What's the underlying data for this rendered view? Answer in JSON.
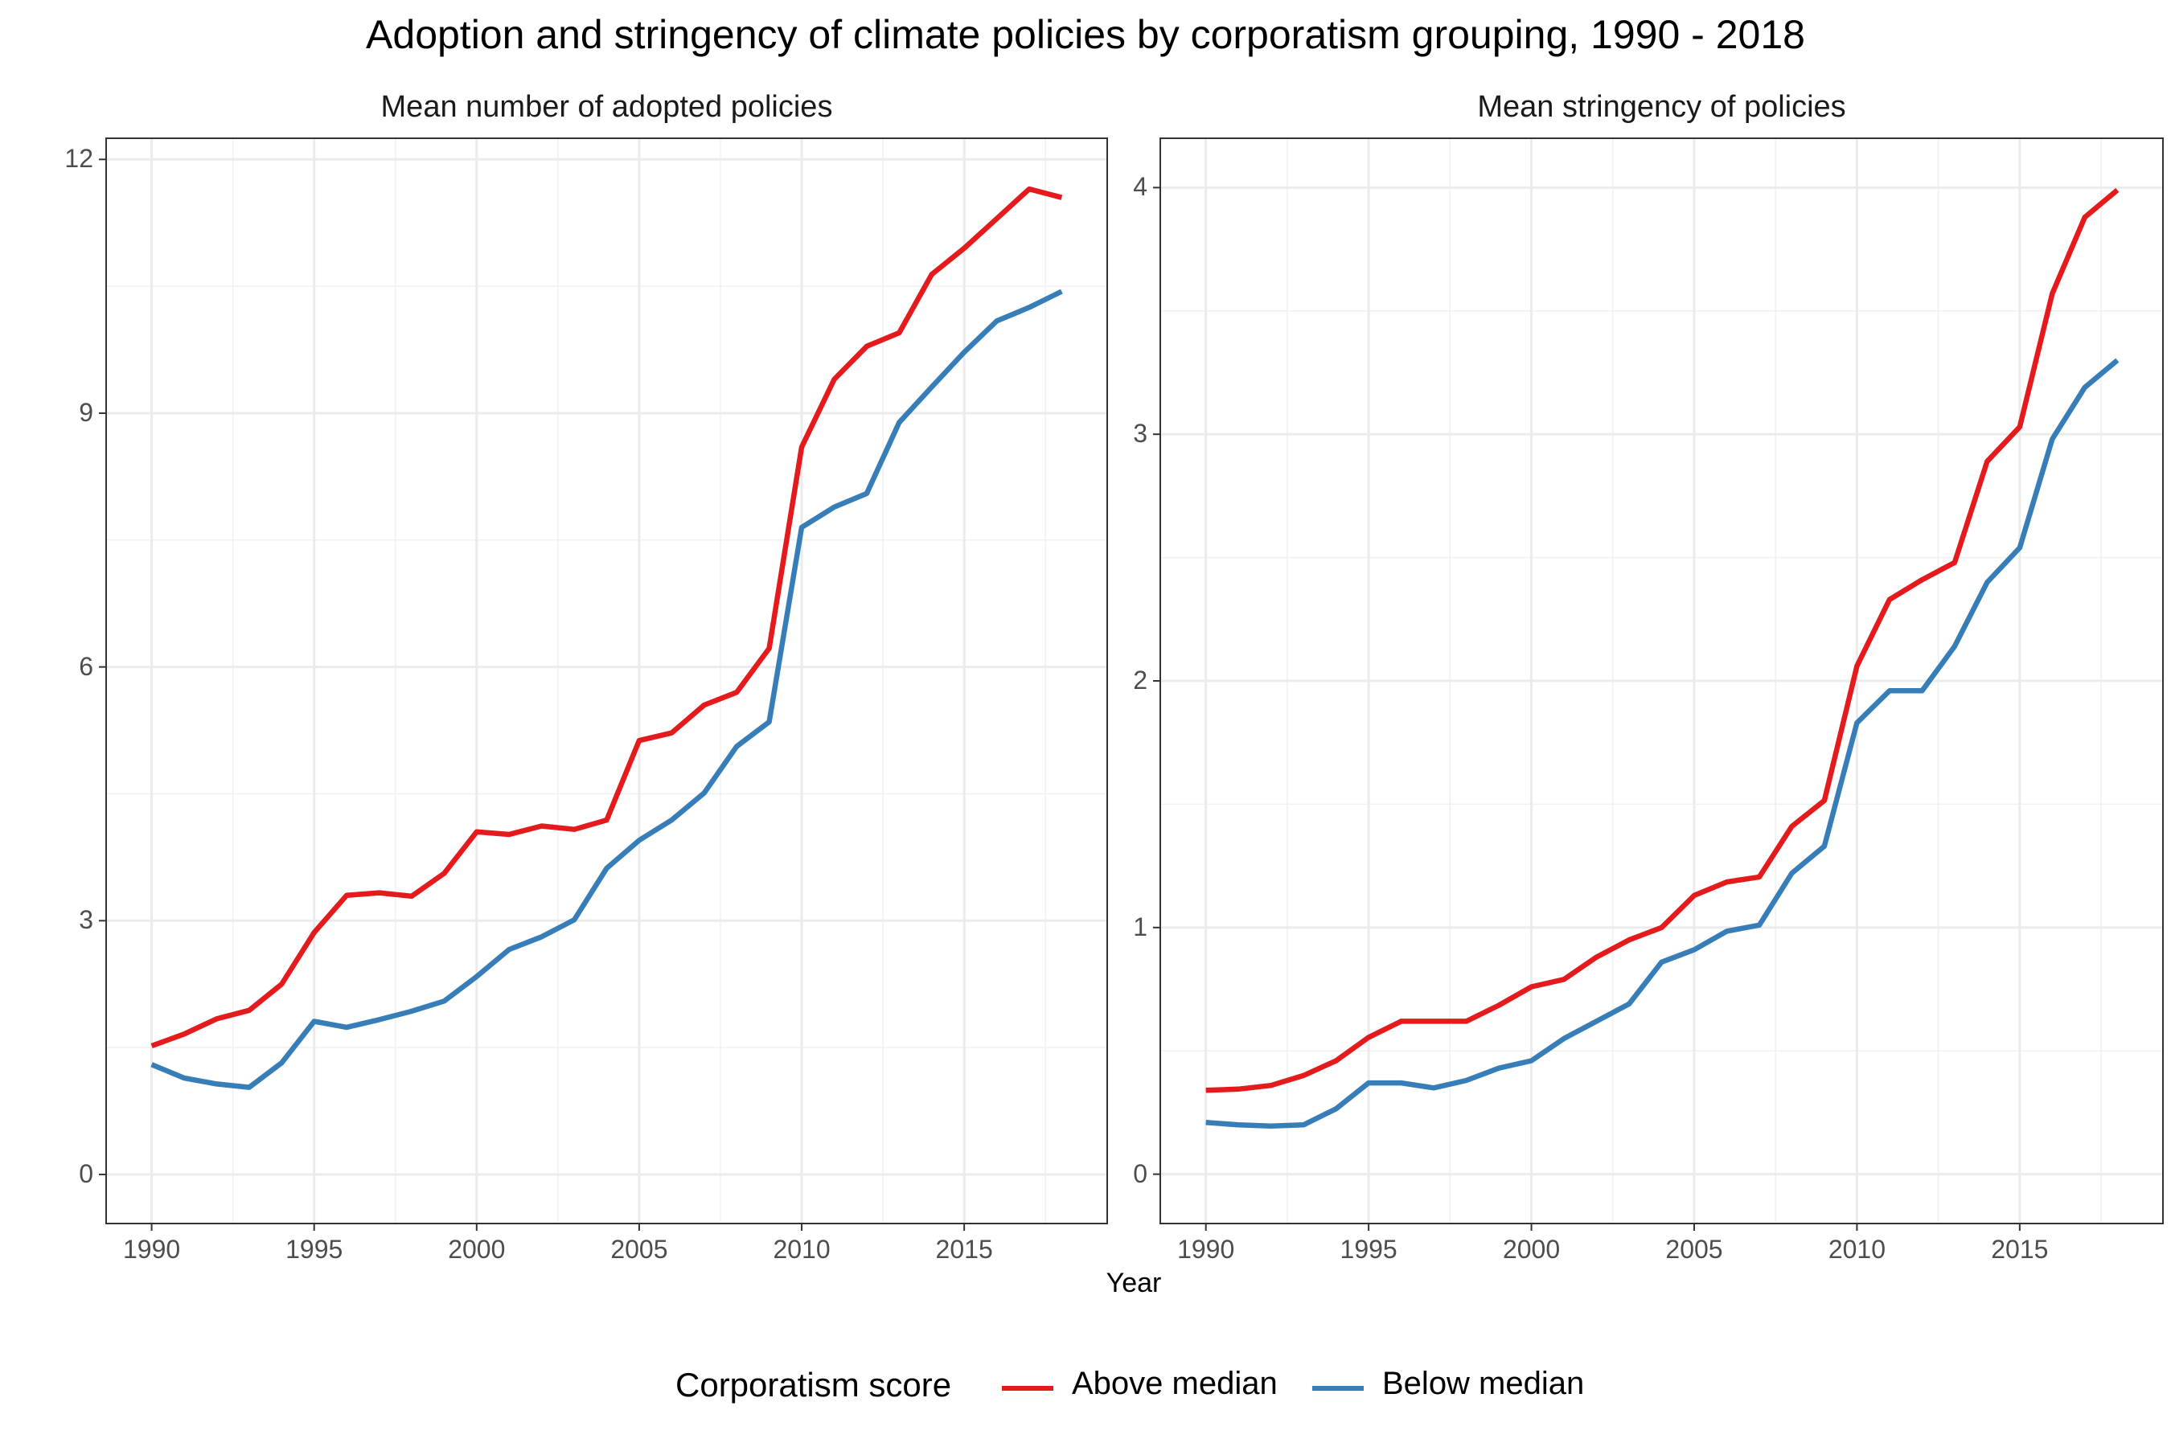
{
  "title": "Adoption and stringency of climate policies by corporatism grouping, 1990 - 2018",
  "xlabel": "Year",
  "legend": {
    "title": "Corporatism score",
    "entries": [
      {
        "name": "Above median",
        "color": "#e41a1c"
      },
      {
        "name": "Below median",
        "color": "#377eb8"
      }
    ],
    "position": "bottom"
  },
  "chart_data": [
    {
      "type": "line",
      "title": "Mean number of adopted policies",
      "xlabel": "Year",
      "ylabel": "",
      "grid": true,
      "xlim": [
        1988.6,
        2019.4
      ],
      "ylim": [
        -0.58,
        12.25
      ],
      "xticks": [
        "1990",
        "1995",
        "2000",
        "2005",
        "2010",
        "2015"
      ],
      "yticks": [
        "0",
        "3",
        "6",
        "9",
        "12"
      ],
      "x": [
        1990,
        1991,
        1992,
        1993,
        1994,
        1995,
        1996,
        1997,
        1998,
        1999,
        2000,
        2001,
        2002,
        2003,
        2004,
        2005,
        2006,
        2007,
        2008,
        2009,
        2010,
        2011,
        2012,
        2013,
        2014,
        2015,
        2016,
        2017,
        2018
      ],
      "series": [
        {
          "name": "Above median",
          "color": "#e41a1c",
          "values": [
            1.52,
            1.66,
            1.84,
            1.94,
            2.25,
            2.86,
            3.3,
            3.33,
            3.29,
            3.56,
            4.05,
            4.02,
            4.12,
            4.08,
            4.19,
            5.13,
            5.22,
            5.55,
            5.7,
            6.22,
            8.6,
            9.4,
            9.79,
            9.95,
            10.64,
            10.95,
            11.3,
            11.65,
            11.55
          ]
        },
        {
          "name": "Below median",
          "color": "#377eb8",
          "values": [
            1.3,
            1.14,
            1.07,
            1.03,
            1.32,
            1.81,
            1.74,
            1.83,
            1.93,
            2.05,
            2.34,
            2.66,
            2.81,
            3.01,
            3.62,
            3.95,
            4.19,
            4.51,
            5.06,
            5.35,
            7.65,
            7.89,
            8.05,
            8.89,
            9.31,
            9.72,
            10.09,
            10.25,
            10.44
          ]
        }
      ]
    },
    {
      "type": "line",
      "title": "Mean stringency of policies",
      "xlabel": "Year",
      "ylabel": "",
      "grid": true,
      "xlim": [
        1988.6,
        2019.4
      ],
      "ylim": [
        -0.2,
        4.2
      ],
      "xticks": [
        "1990",
        "1995",
        "2000",
        "2005",
        "2010",
        "2015"
      ],
      "yticks": [
        "0",
        "1",
        "2",
        "3",
        "4"
      ],
      "x": [
        1990,
        1991,
        1992,
        1993,
        1994,
        1995,
        1996,
        1997,
        1998,
        1999,
        2000,
        2001,
        2002,
        2003,
        2004,
        2005,
        2006,
        2007,
        2008,
        2009,
        2010,
        2011,
        2012,
        2013,
        2014,
        2015,
        2016,
        2017,
        2018
      ],
      "series": [
        {
          "name": "Above median",
          "color": "#e41a1c",
          "values": [
            0.34,
            0.345,
            0.36,
            0.4,
            0.46,
            0.555,
            0.62,
            0.62,
            0.62,
            0.685,
            0.76,
            0.79,
            0.88,
            0.95,
            1.0,
            1.13,
            1.185,
            1.205,
            1.41,
            1.515,
            2.06,
            2.33,
            2.41,
            2.48,
            2.89,
            3.03,
            3.57,
            3.88,
            3.99
          ]
        },
        {
          "name": "Below median",
          "color": "#377eb8",
          "values": [
            0.21,
            0.2,
            0.195,
            0.2,
            0.265,
            0.37,
            0.37,
            0.35,
            0.38,
            0.43,
            0.46,
            0.55,
            0.62,
            0.69,
            0.86,
            0.91,
            0.985,
            1.01,
            1.22,
            1.33,
            1.83,
            1.96,
            1.96,
            2.14,
            2.4,
            2.54,
            2.98,
            3.19,
            3.3
          ]
        }
      ]
    }
  ]
}
